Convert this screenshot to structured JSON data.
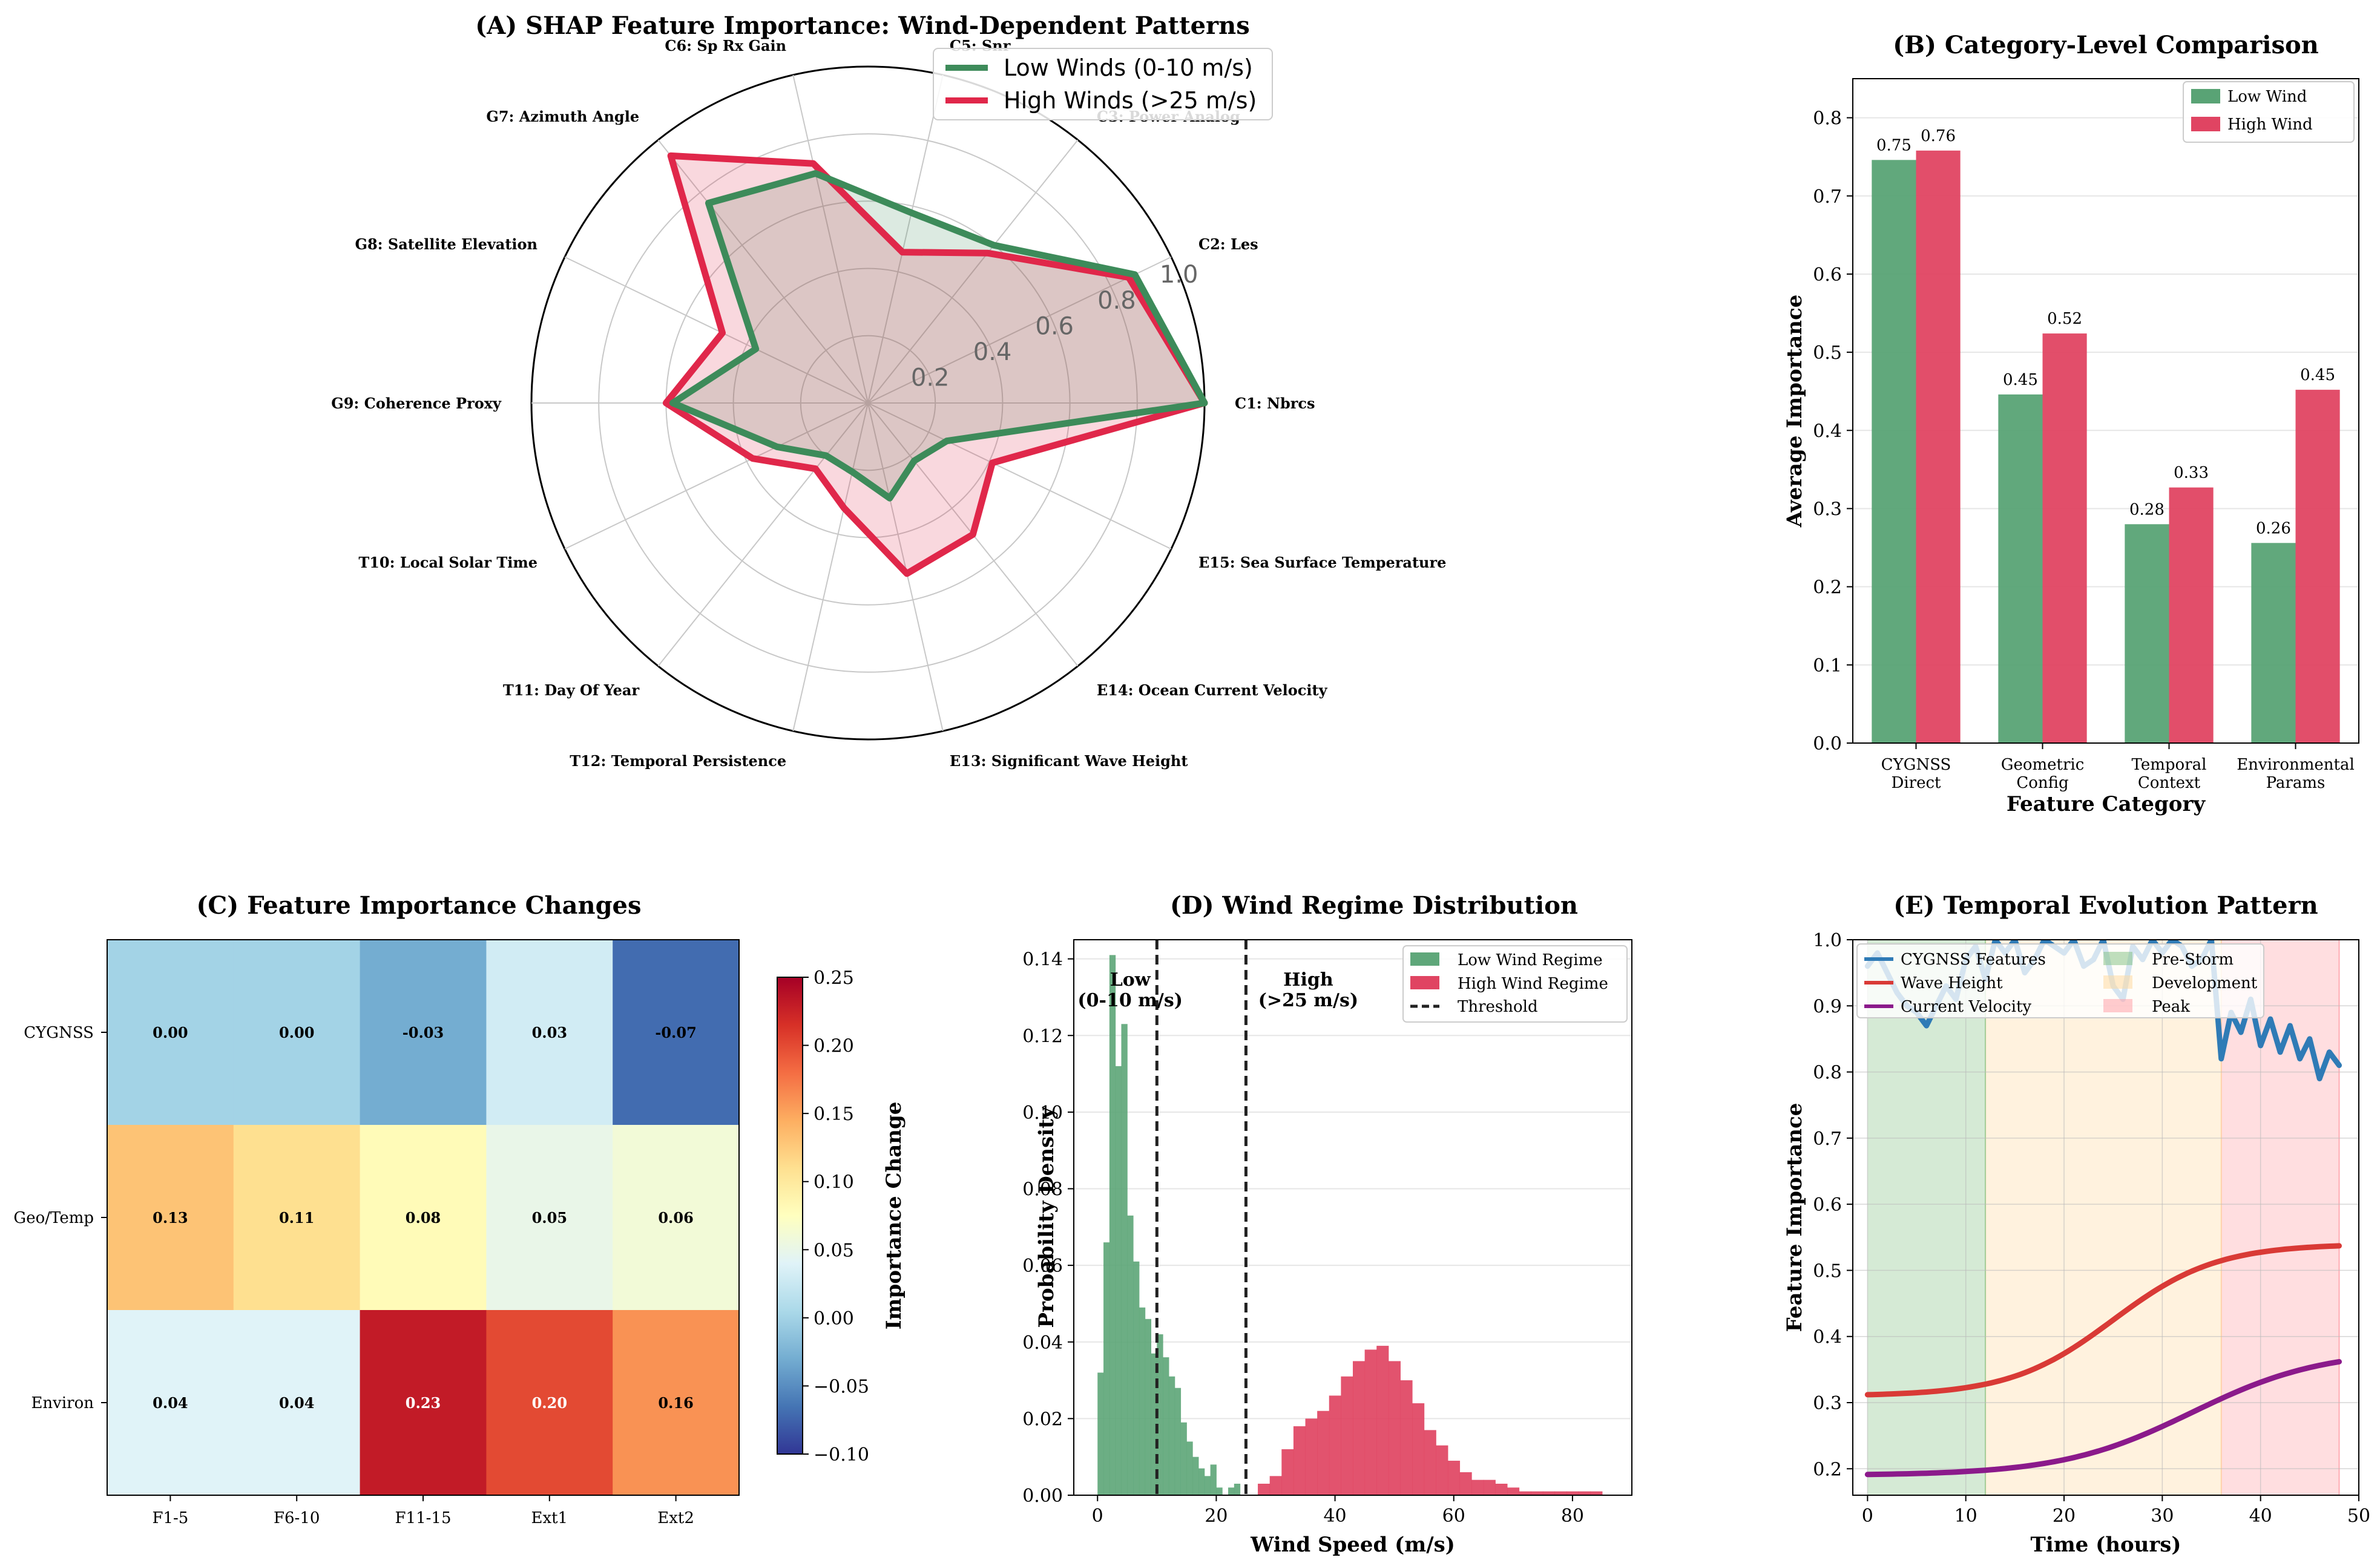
{
  "chart_data": [
    {
      "id": "A",
      "type": "radar",
      "title": "(A) SHAP Feature Importance: Wind-Dependent Patterns",
      "axes": [
        "C1: Nbrcs",
        "C2: Les",
        "C3: Power Analog",
        "C5: Snr",
        "C6: Sp Rx Gain",
        "G7: Azimuth Angle",
        "G8: Satellite Elevation",
        "G9: Coherence Proxy",
        "T10: Local Solar Time",
        "T11: Day Of Year",
        "T12: Temporal Persistence",
        "E13: Significant Wave Height",
        "E14: Ocean Current Velocity",
        "E15: Sea Surface Temperature"
      ],
      "r_ticks": [
        "0.2",
        "0.4",
        "0.6",
        "0.8",
        "1.0"
      ],
      "rlim": [
        0,
        1.0
      ],
      "series": [
        {
          "name": "Low Winds (0-10 m/s)",
          "color": "#3d8b5a",
          "values": [
            1.0,
            0.88,
            0.6,
            0.58,
            0.7,
            0.76,
            0.37,
            0.58,
            0.3,
            0.2,
            0.21,
            0.29,
            0.22,
            0.26
          ]
        },
        {
          "name": "High Winds (>25 m/s)",
          "color": "#e0274a",
          "values": [
            1.0,
            0.86,
            0.57,
            0.46,
            0.73,
            0.94,
            0.48,
            0.6,
            0.38,
            0.25,
            0.32,
            0.52,
            0.5,
            0.41
          ]
        }
      ]
    },
    {
      "id": "B",
      "type": "bar",
      "title": "(B) Category-Level Comparison",
      "xlabel": "Feature Category",
      "ylabel": "Average Importance",
      "categories": [
        [
          "CYGNSS",
          "Direct"
        ],
        [
          "Geometric",
          "Config"
        ],
        [
          "Temporal",
          "Context"
        ],
        [
          "Environmental",
          "Params"
        ]
      ],
      "ylim": [
        0,
        0.85
      ],
      "yticks": [
        "0.0",
        "0.1",
        "0.2",
        "0.3",
        "0.4",
        "0.5",
        "0.6",
        "0.7",
        "0.8"
      ],
      "series": [
        {
          "name": "Low Wind",
          "color": "#59a375",
          "values": [
            0.746,
            0.446,
            0.28,
            0.256
          ],
          "labels": [
            "0.75",
            "0.45",
            "0.28",
            "0.26"
          ]
        },
        {
          "name": "High Wind",
          "color": "#e04462",
          "values": [
            0.758,
            0.524,
            0.327,
            0.452
          ],
          "labels": [
            "0.76",
            "0.52",
            "0.33",
            "0.45"
          ]
        }
      ]
    },
    {
      "id": "C",
      "type": "heatmap",
      "title": "(C) Feature Importance Changes",
      "rows": [
        "CYGNSS",
        "Geo/Temp",
        "Environ"
      ],
      "cols": [
        "F1-5",
        "F6-10",
        "F11-15",
        "Ext1",
        "Ext2"
      ],
      "values": [
        [
          0.0,
          0.0,
          -0.03,
          0.03,
          -0.07
        ],
        [
          0.13,
          0.11,
          0.08,
          0.05,
          0.06
        ],
        [
          0.04,
          0.04,
          0.23,
          0.2,
          0.16
        ]
      ],
      "labels": [
        [
          "0.00",
          "0.00",
          "-0.03",
          "0.03",
          "-0.07"
        ],
        [
          "0.13",
          "0.11",
          "0.08",
          "0.05",
          "0.06"
        ],
        [
          "0.04",
          "0.04",
          "0.23",
          "0.20",
          "0.16"
        ]
      ],
      "colorbar_label": "Importance Change",
      "vmin": -0.1,
      "vmax": 0.25,
      "colorbar_ticks": [
        "0.25",
        "0.20",
        "0.15",
        "0.10",
        "0.05",
        "0.00",
        "−0.05",
        "−0.10"
      ],
      "colormap": [
        "#313695",
        "#4575b4",
        "#74add1",
        "#abd9e9",
        "#e0f3f8",
        "#ffffbf",
        "#fee090",
        "#fdae61",
        "#f46d43",
        "#d73027",
        "#a50026"
      ]
    },
    {
      "id": "D",
      "type": "histogram",
      "title": "(D) Wind Regime Distribution",
      "xlabel": "Wind Speed (m/s)",
      "ylabel": "Probability Density",
      "xlim": [
        -4,
        90
      ],
      "ylim": [
        0,
        0.145
      ],
      "xticks": [
        "0",
        "20",
        "40",
        "60",
        "80"
      ],
      "yticks": [
        "0.00",
        "0.02",
        "0.04",
        "0.06",
        "0.08",
        "0.10",
        "0.12",
        "0.14"
      ],
      "bin_width_low": 1,
      "bin_width_high": 2,
      "series": [
        {
          "name": "Low Wind Regime",
          "color": "#5fa77a",
          "bin_start": 0,
          "bin_width": 1,
          "values": [
            0.032,
            0.066,
            0.141,
            0.112,
            0.123,
            0.073,
            0.061,
            0.049,
            0.046,
            0.037,
            0.042,
            0.036,
            0.031,
            0.028,
            0.019,
            0.014,
            0.01,
            0.007,
            0.005,
            0.008,
            0.002,
            0.0,
            0.002,
            0.003
          ]
        },
        {
          "name": "High Wind Regime",
          "color": "#e04462",
          "bin_start": 27,
          "bin_width": 2,
          "values": [
            0.003,
            0.005,
            0.012,
            0.018,
            0.02,
            0.022,
            0.026,
            0.031,
            0.035,
            0.038,
            0.039,
            0.035,
            0.03,
            0.024,
            0.017,
            0.013,
            0.009,
            0.006,
            0.004,
            0.004,
            0.003,
            0.002,
            0.001,
            0.001,
            0.001,
            0.001,
            0.001,
            0.001,
            0.001
          ]
        }
      ],
      "thresholds": [
        10,
        25
      ],
      "threshold_label": "Threshold",
      "annotations": [
        {
          "lines": [
            "Low",
            "(0-10 m/s)"
          ],
          "x": 5.5,
          "y": 0.133
        },
        {
          "lines": [
            "High",
            "(>25 m/s)"
          ],
          "x": 35.5,
          "y": 0.133
        }
      ]
    },
    {
      "id": "E",
      "type": "line",
      "title": "(E) Temporal Evolution Pattern",
      "xlabel": "Time (hours)",
      "ylabel": "Feature Importance",
      "xlim": [
        -1.5,
        50
      ],
      "ylim": [
        0.16,
        1.0
      ],
      "xticks": [
        "0",
        "10",
        "20",
        "30",
        "40",
        "50"
      ],
      "yticks": [
        "0.2",
        "0.3",
        "0.4",
        "0.5",
        "0.6",
        "0.7",
        "0.8",
        "0.9",
        "1.0"
      ],
      "phases": [
        {
          "name": "Pre-Storm",
          "start": 0,
          "end": 12,
          "color": "#7fbf7f"
        },
        {
          "name": "Development",
          "start": 12,
          "end": 36,
          "color": "#ffd89a"
        },
        {
          "name": "Peak",
          "start": 36,
          "end": 48,
          "color": "#ff9aa2"
        }
      ],
      "series": [
        {
          "name": "CYGNSS Features",
          "color": "#2f7bb6",
          "x": [
            0,
            1,
            2,
            3,
            4,
            5,
            6,
            7,
            8,
            9,
            10,
            11,
            12,
            13,
            14,
            15,
            16,
            17,
            18,
            19,
            20,
            21,
            22,
            23,
            24,
            25,
            26,
            27,
            28,
            29,
            30,
            31,
            32,
            33,
            34,
            35,
            36,
            37,
            38,
            39,
            40,
            41,
            42,
            43,
            44,
            45,
            46,
            47,
            48
          ],
          "values": [
            0.96,
            0.98,
            0.95,
            0.92,
            0.9,
            0.89,
            0.87,
            0.9,
            0.93,
            0.91,
            0.97,
            0.99,
            0.94,
            1.0,
            0.98,
            1.0,
            0.95,
            0.97,
            1.0,
            0.99,
            0.98,
            1.0,
            0.96,
            0.97,
            1.0,
            0.93,
            0.91,
            0.99,
            0.97,
            1.0,
            0.98,
            1.0,
            0.99,
            0.96,
            0.97,
            1.0,
            0.82,
            0.89,
            0.86,
            0.91,
            0.84,
            0.88,
            0.83,
            0.87,
            0.82,
            0.85,
            0.79,
            0.83,
            0.81
          ]
        },
        {
          "name": "Wave Height",
          "color": "#d93a36",
          "formula": "logistic",
          "base": 0.31,
          "amp": 0.23,
          "mid": 25,
          "k": 0.19
        },
        {
          "name": "Current Velocity",
          "color": "#8b1a8b",
          "formula": "logistic",
          "base": 0.19,
          "amp": 0.19,
          "mid": 33,
          "k": 0.15
        }
      ]
    }
  ]
}
